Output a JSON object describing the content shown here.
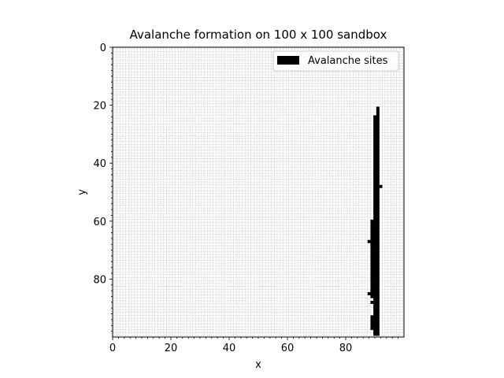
{
  "chart_data": {
    "type": "heatmap",
    "title": "Avalanche formation on 100 x 100 sandbox",
    "xlabel": "x",
    "ylabel": "y",
    "xlim": [
      0,
      100
    ],
    "ylim": [
      100,
      0
    ],
    "y_inverted": true,
    "x_ticks": [
      "0",
      "20",
      "40",
      "60",
      "80"
    ],
    "y_ticks": [
      "0",
      "20",
      "40",
      "60",
      "80"
    ],
    "grid": true,
    "legend": {
      "placement": "top-right",
      "entries": [
        {
          "label": "Avalanche sites",
          "color": "#000000"
        }
      ]
    },
    "colors": {
      "avalanche": "#000000",
      "background": "#ffffff",
      "grid": "#bdbdbd"
    },
    "avalanche_sites": [
      [
        91,
        21
      ],
      [
        91,
        22
      ],
      [
        91,
        23
      ],
      [
        90,
        24
      ],
      [
        91,
        24
      ],
      [
        90,
        25
      ],
      [
        91,
        25
      ],
      [
        90,
        26
      ],
      [
        91,
        26
      ],
      [
        90,
        27
      ],
      [
        91,
        27
      ],
      [
        90,
        28
      ],
      [
        91,
        28
      ],
      [
        90,
        29
      ],
      [
        91,
        29
      ],
      [
        90,
        30
      ],
      [
        91,
        30
      ],
      [
        90,
        31
      ],
      [
        91,
        31
      ],
      [
        90,
        32
      ],
      [
        91,
        32
      ],
      [
        90,
        33
      ],
      [
        91,
        33
      ],
      [
        90,
        34
      ],
      [
        91,
        34
      ],
      [
        90,
        35
      ],
      [
        91,
        35
      ],
      [
        90,
        36
      ],
      [
        91,
        36
      ],
      [
        90,
        37
      ],
      [
        91,
        37
      ],
      [
        90,
        38
      ],
      [
        91,
        38
      ],
      [
        90,
        39
      ],
      [
        91,
        39
      ],
      [
        90,
        40
      ],
      [
        91,
        40
      ],
      [
        90,
        41
      ],
      [
        91,
        41
      ],
      [
        90,
        42
      ],
      [
        91,
        42
      ],
      [
        90,
        43
      ],
      [
        91,
        43
      ],
      [
        90,
        44
      ],
      [
        91,
        44
      ],
      [
        90,
        45
      ],
      [
        91,
        45
      ],
      [
        90,
        46
      ],
      [
        91,
        46
      ],
      [
        90,
        47
      ],
      [
        91,
        47
      ],
      [
        90,
        48
      ],
      [
        91,
        48
      ],
      [
        92,
        48
      ],
      [
        90,
        49
      ],
      [
        91,
        49
      ],
      [
        90,
        50
      ],
      [
        91,
        50
      ],
      [
        90,
        51
      ],
      [
        91,
        51
      ],
      [
        90,
        52
      ],
      [
        91,
        52
      ],
      [
        90,
        53
      ],
      [
        91,
        53
      ],
      [
        90,
        54
      ],
      [
        91,
        54
      ],
      [
        90,
        55
      ],
      [
        91,
        55
      ],
      [
        90,
        56
      ],
      [
        91,
        56
      ],
      [
        90,
        57
      ],
      [
        91,
        57
      ],
      [
        90,
        58
      ],
      [
        91,
        58
      ],
      [
        90,
        59
      ],
      [
        91,
        59
      ],
      [
        89,
        60
      ],
      [
        90,
        60
      ],
      [
        91,
        60
      ],
      [
        89,
        61
      ],
      [
        90,
        61
      ],
      [
        91,
        61
      ],
      [
        89,
        62
      ],
      [
        90,
        62
      ],
      [
        91,
        62
      ],
      [
        89,
        63
      ],
      [
        90,
        63
      ],
      [
        91,
        63
      ],
      [
        89,
        64
      ],
      [
        90,
        64
      ],
      [
        91,
        64
      ],
      [
        89,
        65
      ],
      [
        90,
        65
      ],
      [
        91,
        65
      ],
      [
        89,
        66
      ],
      [
        90,
        66
      ],
      [
        91,
        66
      ],
      [
        88,
        67
      ],
      [
        89,
        67
      ],
      [
        90,
        67
      ],
      [
        91,
        67
      ],
      [
        89,
        68
      ],
      [
        90,
        68
      ],
      [
        91,
        68
      ],
      [
        89,
        69
      ],
      [
        90,
        69
      ],
      [
        91,
        69
      ],
      [
        89,
        70
      ],
      [
        90,
        70
      ],
      [
        91,
        70
      ],
      [
        89,
        71
      ],
      [
        90,
        71
      ],
      [
        91,
        71
      ],
      [
        89,
        72
      ],
      [
        90,
        72
      ],
      [
        91,
        72
      ],
      [
        89,
        73
      ],
      [
        90,
        73
      ],
      [
        91,
        73
      ],
      [
        89,
        74
      ],
      [
        90,
        74
      ],
      [
        91,
        74
      ],
      [
        89,
        75
      ],
      [
        90,
        75
      ],
      [
        91,
        75
      ],
      [
        89,
        76
      ],
      [
        90,
        76
      ],
      [
        91,
        76
      ],
      [
        89,
        77
      ],
      [
        90,
        77
      ],
      [
        91,
        77
      ],
      [
        89,
        78
      ],
      [
        90,
        78
      ],
      [
        91,
        78
      ],
      [
        89,
        79
      ],
      [
        90,
        79
      ],
      [
        91,
        79
      ],
      [
        89,
        80
      ],
      [
        90,
        80
      ],
      [
        91,
        80
      ],
      [
        89,
        81
      ],
      [
        90,
        81
      ],
      [
        91,
        81
      ],
      [
        89,
        82
      ],
      [
        90,
        82
      ],
      [
        91,
        82
      ],
      [
        89,
        83
      ],
      [
        90,
        83
      ],
      [
        91,
        83
      ],
      [
        89,
        84
      ],
      [
        90,
        84
      ],
      [
        91,
        84
      ],
      [
        88,
        85
      ],
      [
        89,
        85
      ],
      [
        90,
        85
      ],
      [
        91,
        85
      ],
      [
        89,
        86
      ],
      [
        90,
        86
      ],
      [
        91,
        86
      ],
      [
        90,
        87
      ],
      [
        91,
        87
      ],
      [
        89,
        88
      ],
      [
        90,
        88
      ],
      [
        91,
        88
      ],
      [
        90,
        89
      ],
      [
        91,
        89
      ],
      [
        90,
        90
      ],
      [
        91,
        90
      ],
      [
        90,
        91
      ],
      [
        91,
        91
      ],
      [
        90,
        92
      ],
      [
        91,
        92
      ],
      [
        89,
        93
      ],
      [
        90,
        93
      ],
      [
        91,
        93
      ],
      [
        89,
        94
      ],
      [
        90,
        94
      ],
      [
        91,
        94
      ],
      [
        89,
        95
      ],
      [
        90,
        95
      ],
      [
        91,
        95
      ],
      [
        89,
        96
      ],
      [
        90,
        96
      ],
      [
        91,
        96
      ],
      [
        89,
        97
      ],
      [
        90,
        97
      ],
      [
        91,
        97
      ],
      [
        90,
        98
      ],
      [
        91,
        98
      ],
      [
        90,
        99
      ],
      [
        91,
        99
      ]
    ]
  }
}
